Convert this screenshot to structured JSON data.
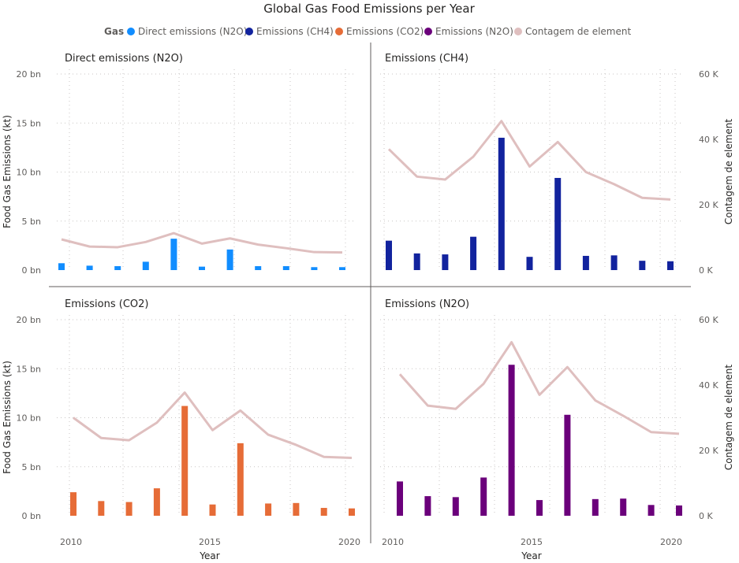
{
  "title": "Global Gas Food Emissions per Year",
  "legend": {
    "header": "Gas",
    "items": [
      {
        "label": "Direct emissions (N2O)",
        "color": "#118DFF"
      },
      {
        "label": "Emissions (CH4)",
        "color": "#12239E"
      },
      {
        "label": "Emissions (CO2)",
        "color": "#E66C37"
      },
      {
        "label": "Emissions (N2O)",
        "color": "#6B007B"
      },
      {
        "label": "Contagem de element",
        "color": "#DFBFBF"
      }
    ]
  },
  "axes": {
    "y_left_title": "Food Gas Emissions (kt)",
    "y_right_title": "Contagem de element",
    "x_title": "Year",
    "y_left_ticks": [
      "20 bn",
      "15 bn",
      "10 bn",
      "5 bn",
      "0 bn"
    ],
    "y_right_ticks": [
      "60 K",
      "40 K",
      "20 K",
      "0 K"
    ],
    "x_ticks": [
      "2010",
      "2015",
      "2020"
    ]
  },
  "chart_data": [
    {
      "type": "bar",
      "title": "Direct emissions (N2O)",
      "x": [
        2010,
        2011,
        2012,
        2013,
        2014,
        2015,
        2016,
        2017,
        2018,
        2019,
        2020
      ],
      "series": [
        {
          "name": "Direct emissions (N2O)",
          "values": [
            0.7,
            0.45,
            0.4,
            0.85,
            3.2,
            0.35,
            2.1,
            0.4,
            0.4,
            0.3,
            0.3
          ],
          "color": "#118DFF"
        }
      ],
      "line": {
        "name": "Contagem de element",
        "values": [
          9400,
          7200,
          7000,
          8600,
          11300,
          8100,
          9700,
          7800,
          6700,
          5500,
          5400
        ],
        "color": "#DFBFBF"
      },
      "ylim_left": [
        0,
        20
      ],
      "ylim_right": [
        0,
        60000
      ],
      "grid": true
    },
    {
      "type": "bar",
      "title": "Emissions (CH4)",
      "x": [
        2010,
        2011,
        2012,
        2013,
        2014,
        2015,
        2016,
        2017,
        2018,
        2019,
        2020
      ],
      "series": [
        {
          "name": "Emissions (CH4)",
          "values": [
            3.0,
            1.7,
            1.6,
            3.4,
            13.5,
            1.35,
            9.4,
            1.45,
            1.5,
            0.95,
            0.9
          ],
          "color": "#12239E"
        }
      ],
      "line": {
        "name": "Contagem de element",
        "values": [
          37000,
          28600,
          27700,
          34700,
          45600,
          31700,
          39200,
          30000,
          26300,
          22100,
          21600
        ],
        "color": "#DFBFBF"
      },
      "ylim_left": [
        0,
        20
      ],
      "ylim_right": [
        0,
        60000
      ],
      "grid": true
    },
    {
      "type": "bar",
      "title": "Emissions (CO2)",
      "x": [
        2010,
        2011,
        2012,
        2013,
        2014,
        2015,
        2016,
        2017,
        2018,
        2019,
        2020
      ],
      "series": [
        {
          "name": "Emissions (CO2)",
          "values": [
            2.4,
            1.5,
            1.4,
            2.8,
            11.2,
            1.15,
            7.4,
            1.25,
            1.3,
            0.8,
            0.75
          ],
          "color": "#E66C37"
        }
      ],
      "line": {
        "name": "Contagem de element",
        "values": [
          30000,
          23800,
          23100,
          28500,
          37700,
          26200,
          32200,
          24800,
          21700,
          18000,
          17700
        ],
        "color": "#DFBFBF"
      },
      "ylim_left": [
        0,
        20
      ],
      "ylim_right": [
        0,
        60000
      ],
      "grid": true
    },
    {
      "type": "bar",
      "title": "Emissions (N2O)",
      "x": [
        2010,
        2011,
        2012,
        2013,
        2014,
        2015,
        2016,
        2017,
        2018,
        2019,
        2020
      ],
      "series": [
        {
          "name": "Emissions (N2O)",
          "values": [
            3.5,
            2.0,
            1.9,
            3.9,
            15.4,
            1.6,
            10.3,
            1.7,
            1.75,
            1.1,
            1.05
          ],
          "color": "#6B007B"
        }
      ],
      "line": {
        "name": "Contagem de element",
        "values": [
          43300,
          33700,
          32700,
          40400,
          53100,
          37000,
          45500,
          35300,
          30600,
          25600,
          25100
        ],
        "color": "#DFBFBF"
      },
      "ylim_left": [
        0,
        20
      ],
      "ylim_right": [
        0,
        60000
      ],
      "grid": true
    }
  ]
}
